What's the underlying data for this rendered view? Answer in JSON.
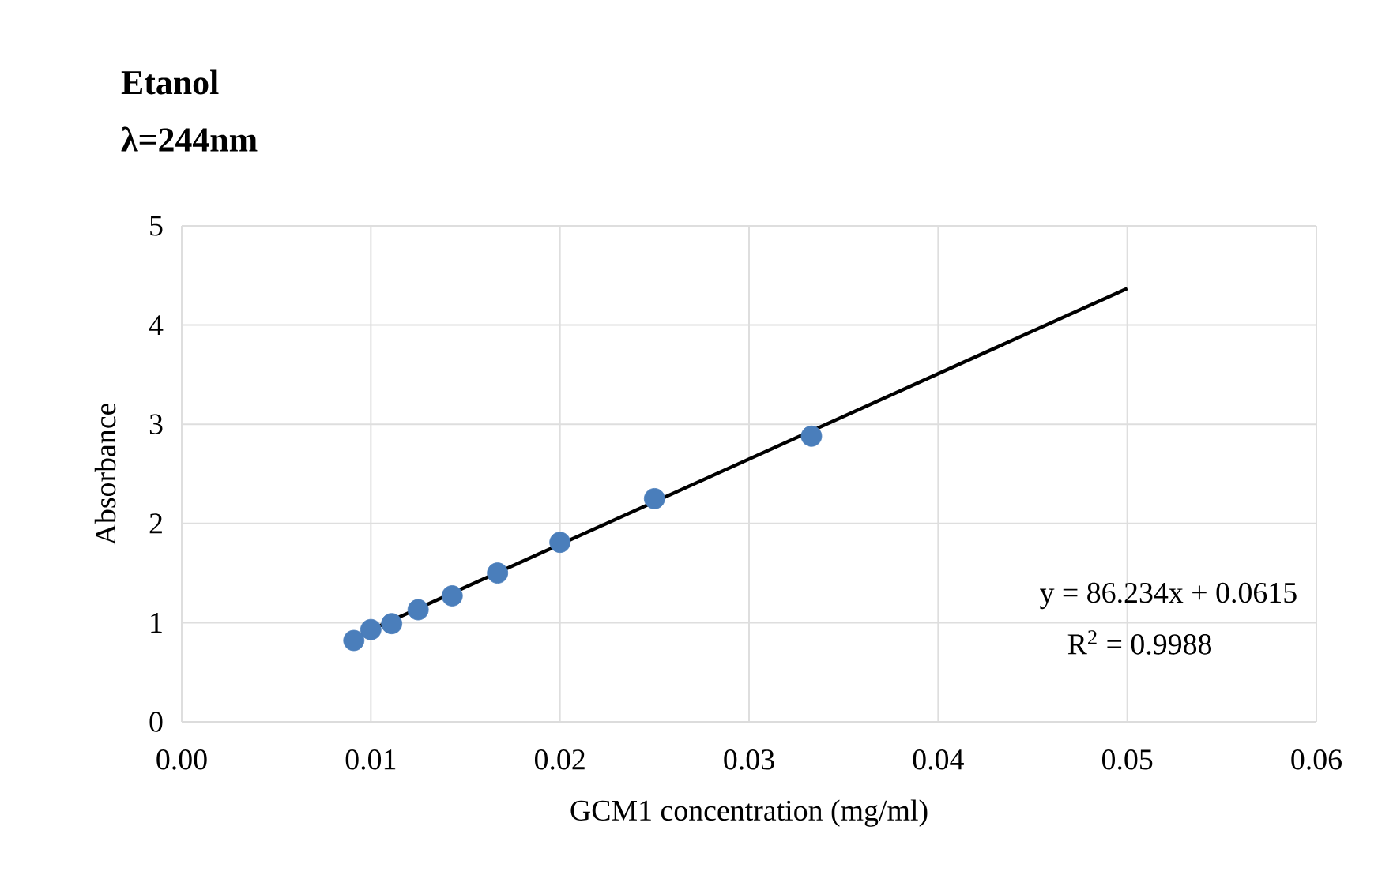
{
  "chart_data": {
    "type": "scatter",
    "title": "Etanol",
    "subtitle": "λ=244nm",
    "xlabel": "GCM1 concentration (mg/ml)",
    "ylabel": "Absorbance",
    "series": [
      {
        "color": "#4a7ebb",
        "marker": "circle",
        "x": [
          0.0091,
          0.01,
          0.0111,
          0.0125,
          0.0143,
          0.0167,
          0.02,
          0.025,
          0.0333
        ],
        "values": [
          0.82,
          0.93,
          0.99,
          1.13,
          1.27,
          1.5,
          1.81,
          2.25,
          2.88
        ]
      },
      {
        "type": "line",
        "color": "#000000",
        "marker": "none",
        "line_style": "solid",
        "x": [
          0.0091,
          0.05
        ],
        "values": [
          0.85,
          4.37
        ]
      }
    ],
    "xlim": [
      0,
      0.06
    ],
    "ylim": [
      0,
      5
    ],
    "xticks": [
      {
        "value": 0,
        "label": "0.00"
      },
      {
        "value": 0.01,
        "label": "0.01"
      },
      {
        "value": 0.02,
        "label": "0.02"
      },
      {
        "value": 0.03,
        "label": "0.03"
      },
      {
        "value": 0.04,
        "label": "0.04"
      },
      {
        "value": 0.05,
        "label": "0.05"
      },
      {
        "value": 0.06,
        "label": "0.06"
      }
    ],
    "yticks": [
      0,
      1,
      2,
      3,
      4,
      5
    ],
    "grid": true,
    "annotations": [
      "y = 86.234x + 0.0615",
      "R$^{2}$ = 0.9988"
    ]
  }
}
